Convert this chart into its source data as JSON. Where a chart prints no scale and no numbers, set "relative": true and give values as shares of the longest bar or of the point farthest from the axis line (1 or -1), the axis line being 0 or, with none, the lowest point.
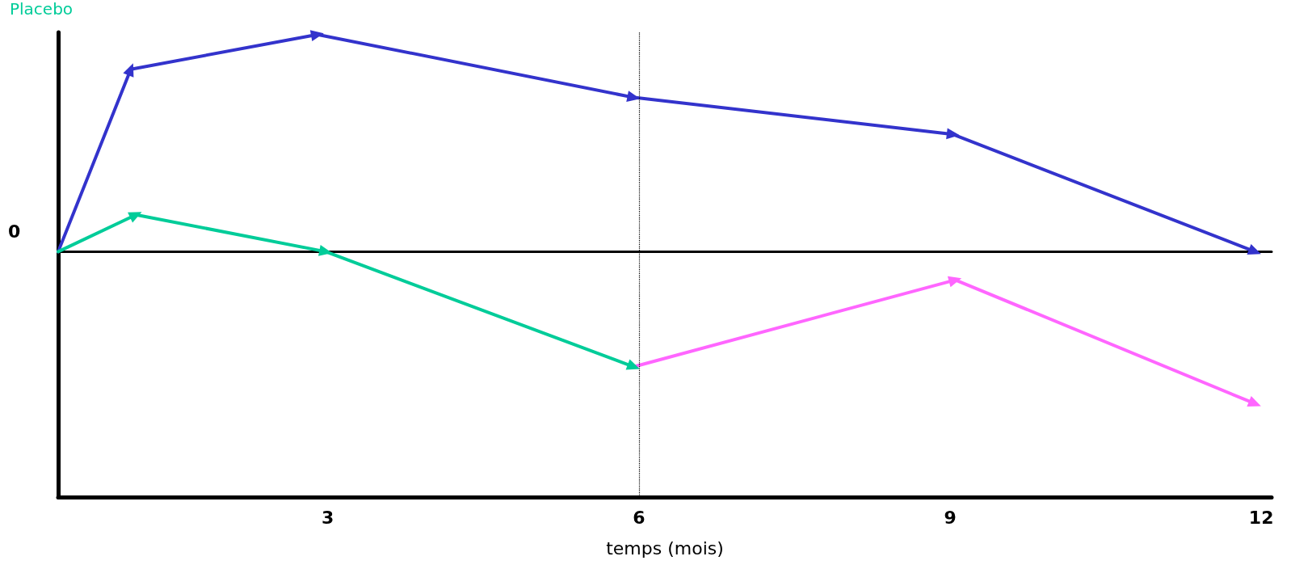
{
  "chart_data": {
    "type": "line",
    "relative": true,
    "xlabel": "temps (mois)",
    "xlim": [
      0.4,
      12.1
    ],
    "xticks": [
      3,
      6,
      9,
      12
    ],
    "annotations": [
      "0"
    ],
    "legend": "top left",
    "marker": "triangle",
    "line_style": "solid",
    "grid": false,
    "ref_lines": [
      {
        "axis": "x",
        "value": 6,
        "color": "#000000",
        "line_style": "dotted"
      }
    ],
    "series": [
      {
        "color": "#3333cc",
        "x": [
          0.4,
          1.1,
          2.9,
          5.95,
          9.03,
          11.94
        ],
        "values": [
          0,
          0.84,
          1,
          0.71,
          0.54,
          0
        ]
      },
      {
        "name": "Placebo",
        "color": "#00cc99",
        "x": [
          0.4,
          1.15,
          2.98,
          5.95
        ],
        "values": [
          0,
          0.17,
          0,
          -0.53
        ]
      },
      {
        "color": "#ff66ff",
        "x": [
          5.95,
          9.05,
          11.94
        ],
        "values": [
          -0.53,
          -0.13,
          -0.7
        ]
      }
    ]
  }
}
